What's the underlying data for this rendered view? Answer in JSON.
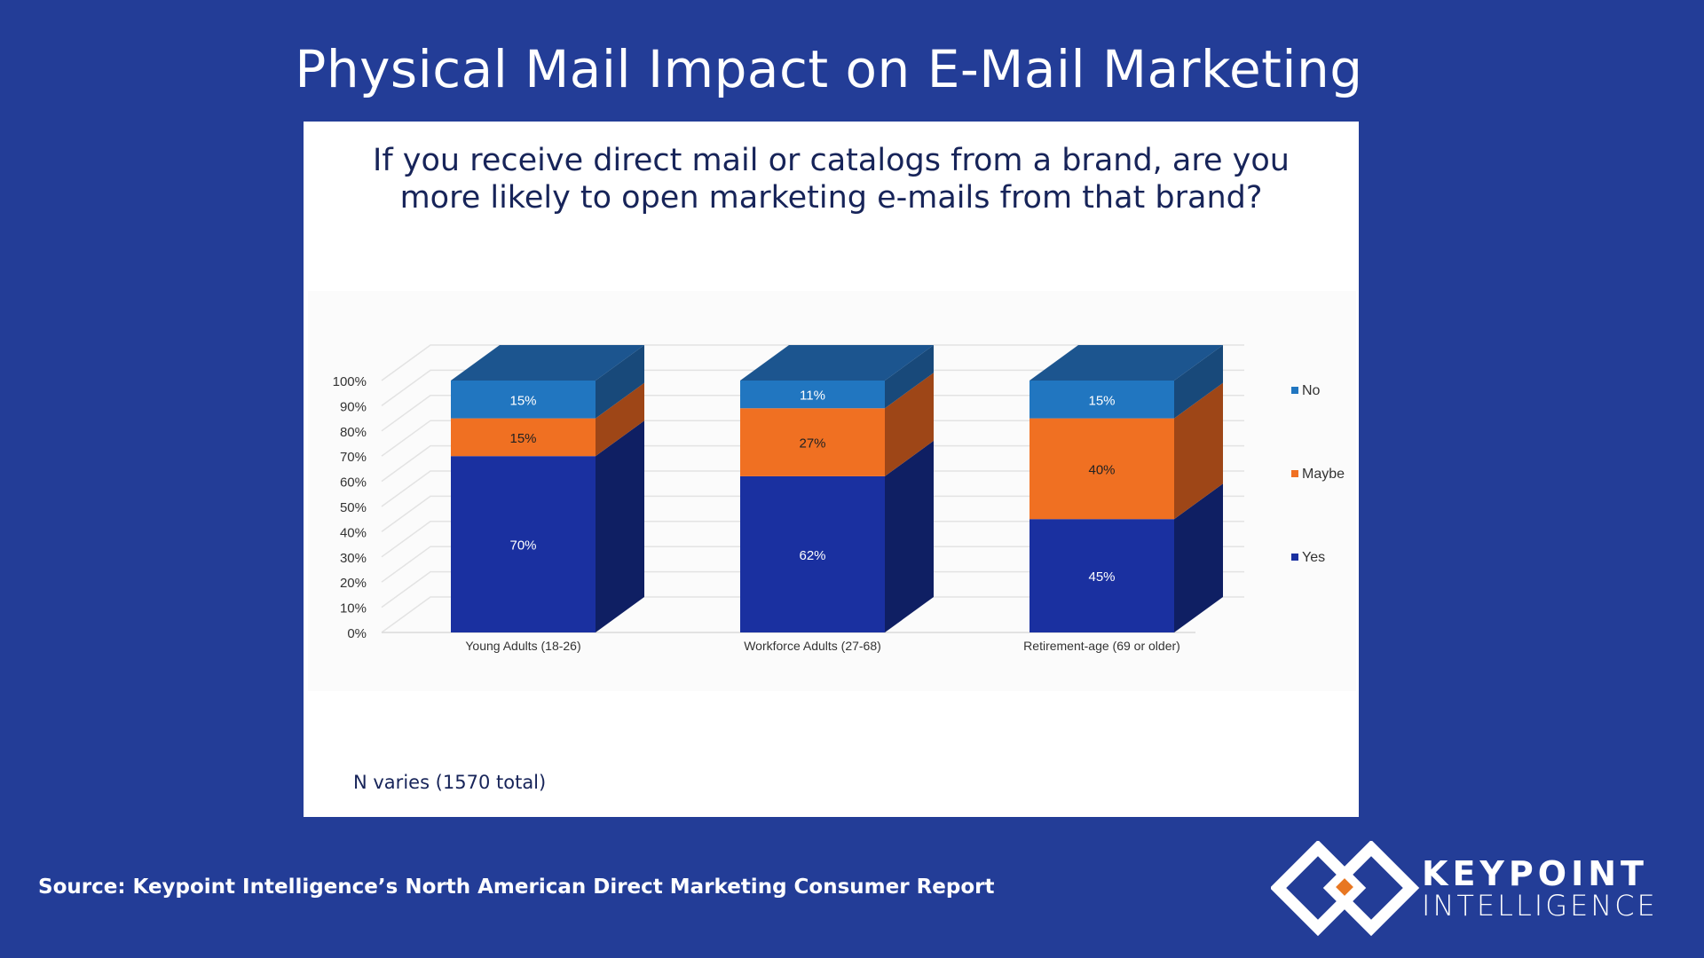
{
  "header": {
    "title": "Physical Mail Impact on E-Mail Marketing"
  },
  "question": {
    "line1": "If you receive direct mail or catalogs from a brand, are you",
    "line2": "more likely to open marketing e-mails from that brand?"
  },
  "note": "N varies (1570 total)",
  "source": "Source: Keypoint Intelligence’s North American Direct Marketing Consumer Report",
  "logo": {
    "line1": "KEYPOINT",
    "line2": "INTELLIGENCE"
  },
  "colors": {
    "background": "#233d97",
    "yes": "#1a30a0",
    "maybe": "#f07022",
    "no": "#2176c0",
    "top": "#1c558f"
  },
  "chart_data": {
    "type": "bar",
    "stacked": true,
    "style": "3d",
    "categories": [
      "Young Adults (18-26)",
      "Workforce Adults (27-68)",
      "Retirement-age (69 or older)"
    ],
    "series": [
      {
        "name": "Yes",
        "values": [
          70,
          62,
          45
        ],
        "labels": [
          "70%",
          "62%",
          "45%"
        ]
      },
      {
        "name": "Maybe",
        "values": [
          15,
          27,
          40
        ],
        "labels": [
          "15%",
          "27%",
          "40%"
        ]
      },
      {
        "name": "No",
        "values": [
          15,
          11,
          15
        ],
        "labels": [
          "15%",
          "11%",
          "15%"
        ]
      }
    ],
    "yticks": [
      "0%",
      "10%",
      "20%",
      "30%",
      "40%",
      "50%",
      "60%",
      "70%",
      "80%",
      "90%",
      "100%"
    ],
    "ylim": [
      0,
      100
    ],
    "legend": {
      "position": "right",
      "order": [
        "No",
        "Maybe",
        "Yes"
      ]
    },
    "grid": true
  }
}
